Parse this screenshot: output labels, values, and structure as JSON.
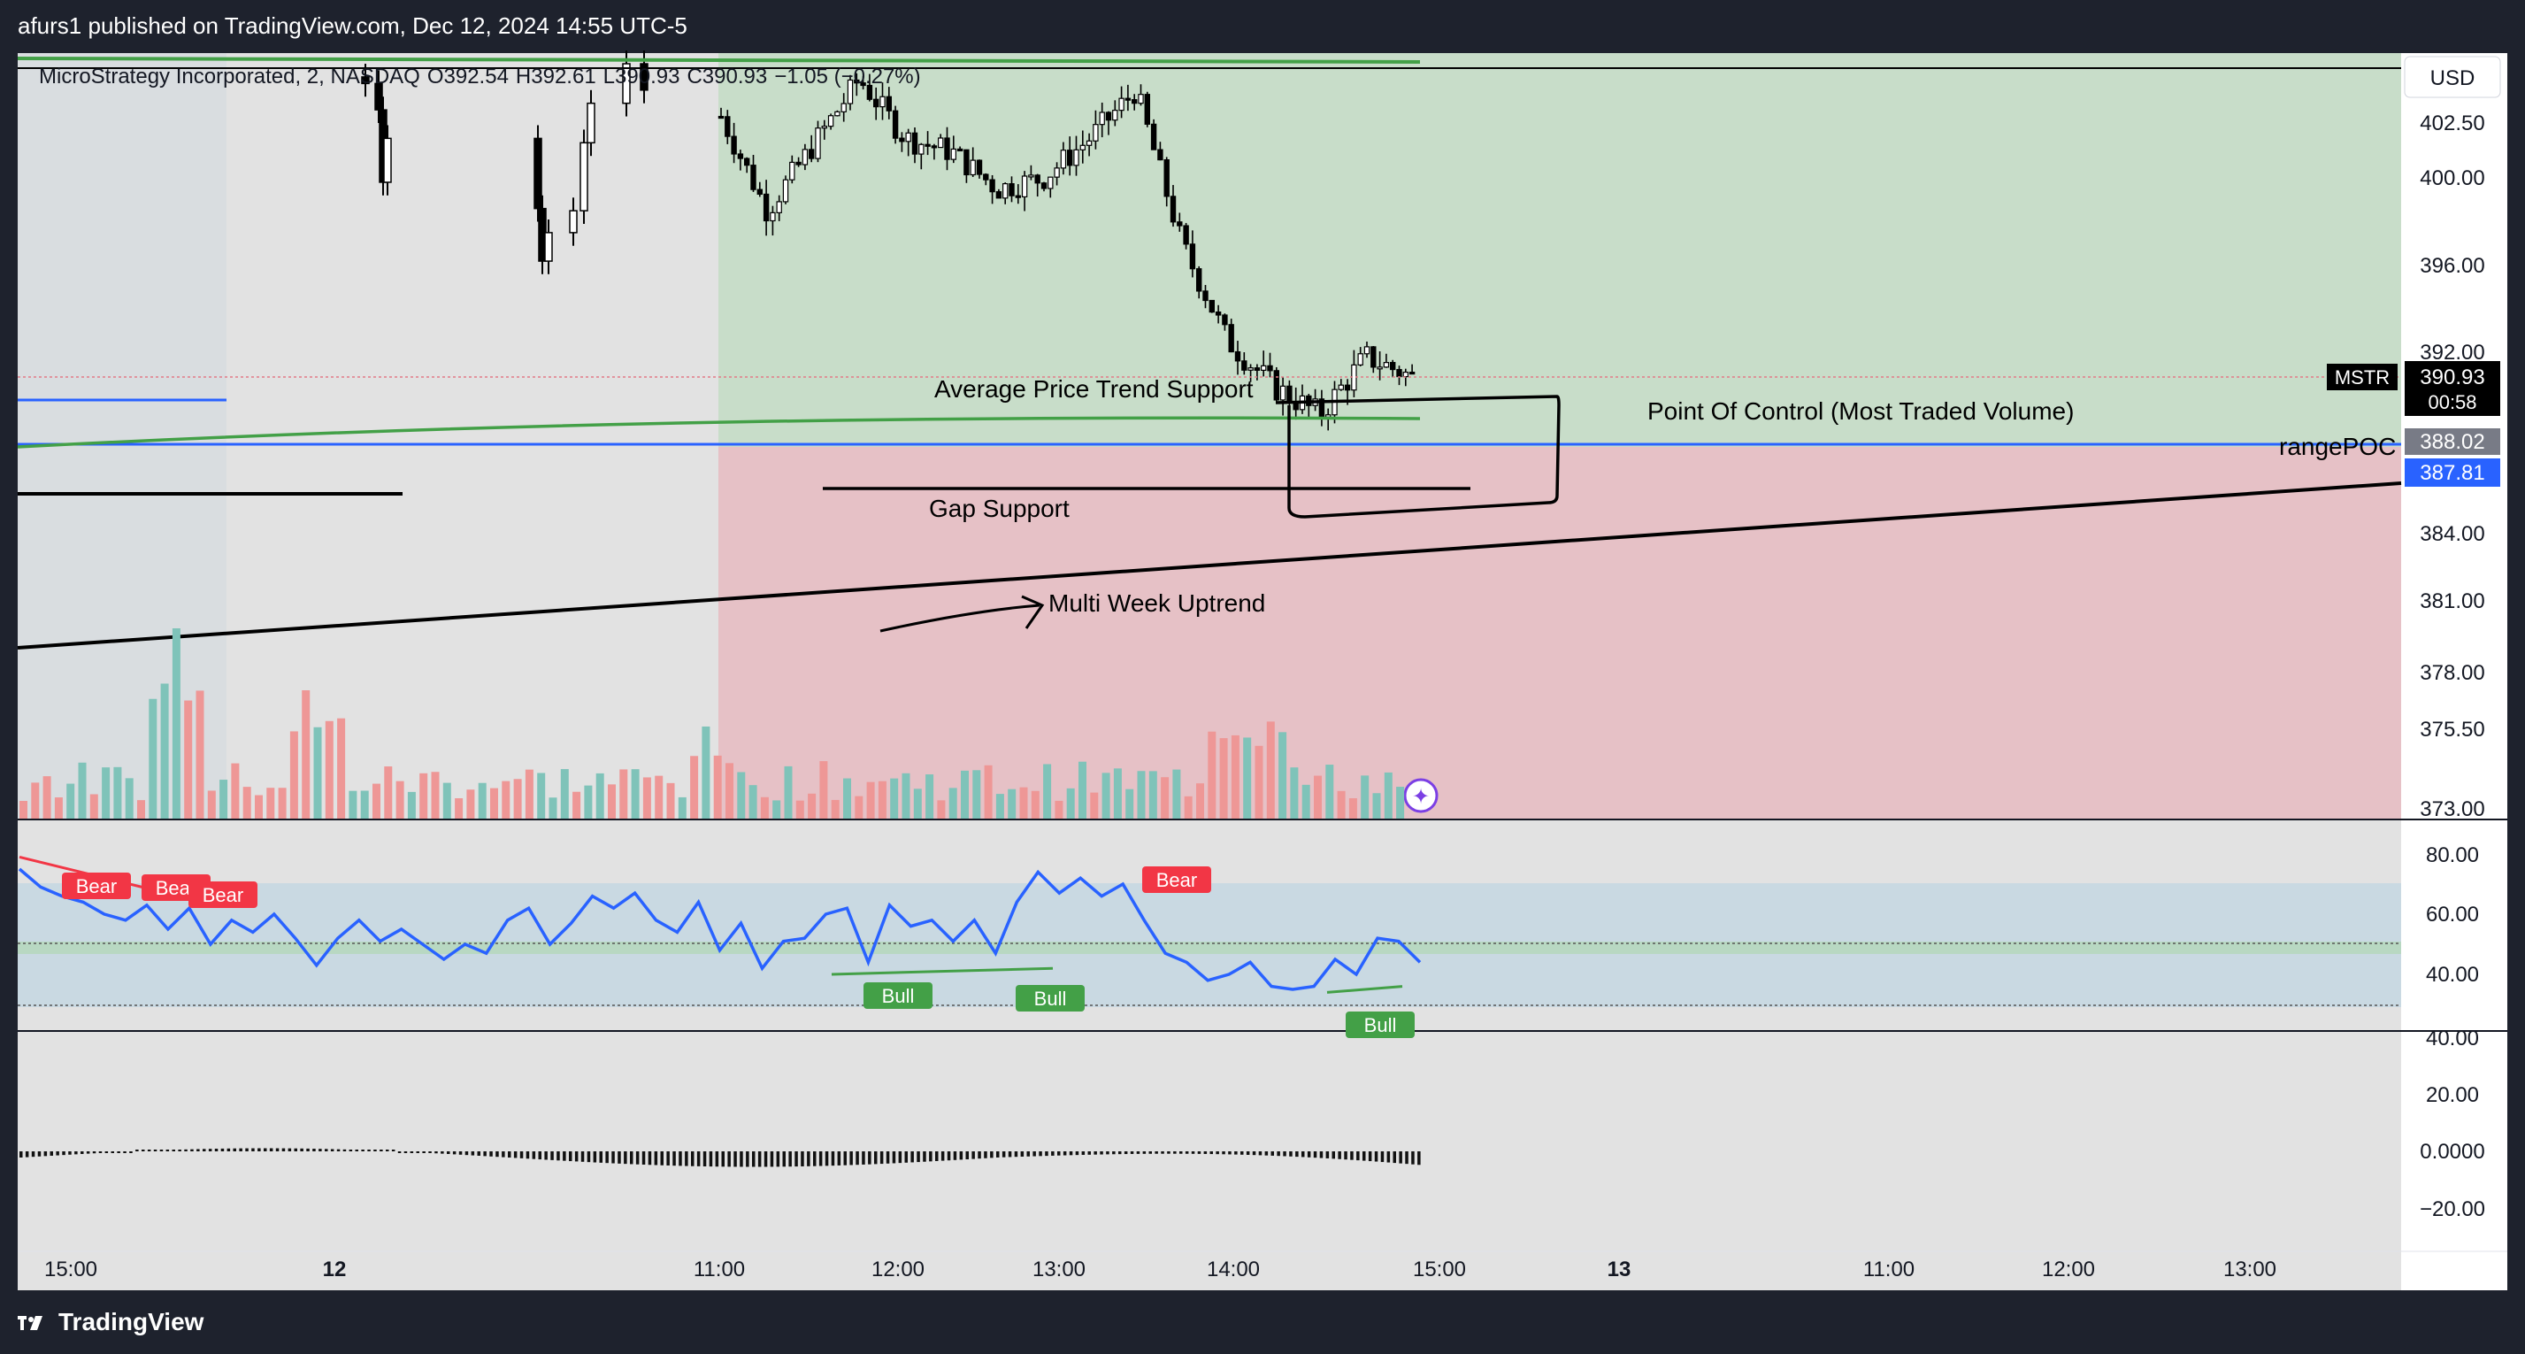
{
  "header": {
    "publisher_line": "afurs1 published on TradingView.com, Dec 12, 2024 14:55 UTC-5"
  },
  "footer": {
    "brand": "TradingView"
  },
  "legend": {
    "symbol": "MicroStrategy Incorporated, 2, NASDAQ",
    "open_label": "O392.54",
    "high_label": "H392.61",
    "low_label": "L390.93",
    "close_label": "C390.93",
    "change_label": "−1.05 (−0.27%)"
  },
  "price_axis": {
    "currency": "USD",
    "ticks": [
      "402.50",
      "400.00",
      "396.00",
      "392.00",
      "388.02",
      "384.00",
      "381.00",
      "378.00",
      "375.50",
      "373.00"
    ],
    "last_price_tag": {
      "symbol": "MSTR",
      "price": "390.93",
      "countdown": "00:58"
    },
    "poc_tag": "388.02",
    "level_tag": "387.81"
  },
  "time_axis": {
    "ticks": [
      "15:00",
      "12",
      "11:00",
      "12:00",
      "13:00",
      "14:00",
      "15:00",
      "13",
      "11:00",
      "12:00",
      "13:00"
    ]
  },
  "annotations": {
    "avg_trend": "Average Price Trend Support",
    "poc": "Point Of Control (Most Traded Volume)",
    "range_poc": "rangePOC",
    "gap": "Gap Support",
    "uptrend": "Multi Week Uptrend"
  },
  "rsi_pane": {
    "ticks": [
      "80.00",
      "60.00",
      "40.00"
    ],
    "divergence_labels": [
      "Bear",
      "Bear",
      "Bear",
      "Bull",
      "Bull",
      "Bear",
      "Bull"
    ]
  },
  "osc_pane": {
    "ticks": [
      "40.00",
      "20.00",
      "0.0000",
      "−20.00"
    ]
  },
  "colors": {
    "up": "#26a69a",
    "down": "#ef5350",
    "rsi": "#2962ff",
    "poc_zone": "#c8ddc9",
    "below_zone": "#e6c1c6",
    "bear": "#f23645",
    "bull": "#43a047"
  },
  "chart_data": [
    {
      "type": "candlestick",
      "title": "MicroStrategy Incorporated, 2, NASDAQ",
      "ylim": [
        371.5,
        405
      ],
      "y_ticks": [
        373.0,
        375.5,
        378.0,
        381.0,
        384.0,
        388.02,
        392.0,
        396.0,
        400.0,
        402.5
      ],
      "last_close": 390.93,
      "levels": {
        "range_poc": 388.02,
        "blue_level": 387.81,
        "gap_support": 385.9
      },
      "series": [
        {
          "name": "price_path_12Dec",
          "x": [
            "09:30",
            "10:00",
            "10:30",
            "11:00",
            "11:30",
            "12:00",
            "12:30",
            "13:00",
            "13:20",
            "13:40",
            "14:00",
            "14:20",
            "14:30",
            "14:40",
            "14:50",
            "14:54"
          ],
          "values": [
            402.8,
            398.5,
            401.5,
            404.5,
            401.8,
            401.2,
            399.5,
            400.0,
            401.8,
            404.0,
            397.0,
            392.5,
            390.5,
            389.3,
            391.8,
            390.93
          ]
        }
      ]
    },
    {
      "type": "line",
      "title": "RSI",
      "ylim": [
        33,
        87
      ],
      "series": [
        {
          "name": "RSI",
          "values": [
            75,
            69,
            66,
            64,
            60,
            58,
            63,
            55,
            62,
            50,
            58,
            54,
            60,
            52,
            43,
            52,
            58,
            51,
            55,
            50,
            45,
            50,
            47,
            58,
            62,
            50,
            57,
            66,
            62,
            67,
            58,
            54,
            64,
            48,
            57,
            42,
            51,
            52,
            60,
            62,
            44,
            63,
            56,
            58,
            51,
            58,
            47,
            64,
            74,
            67,
            72,
            66,
            70,
            58,
            47,
            44,
            38,
            40,
            44,
            36,
            35,
            36,
            45,
            40,
            52,
            51,
            44
          ]
        }
      ],
      "bands": {
        "upper": 70,
        "mid": 50,
        "lower": 30
      }
    },
    {
      "type": "bar",
      "title": "Oscillator",
      "ylim": [
        -28,
        47
      ],
      "values_range": [
        -7,
        3
      ]
    }
  ]
}
